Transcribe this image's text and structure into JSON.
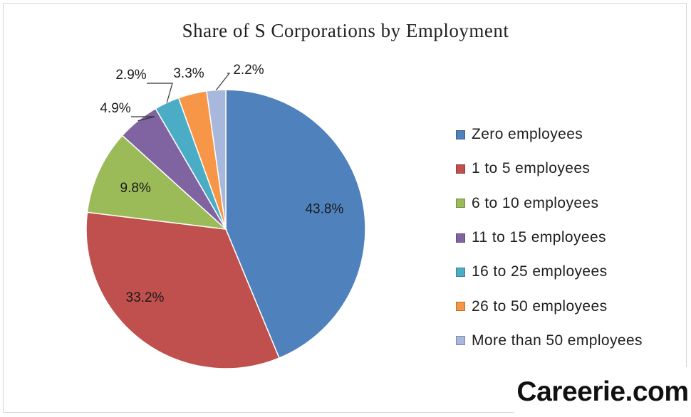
{
  "chart_data": {
    "type": "pie",
    "title": "Share of S Corporations by Employment",
    "categories": [
      "Zero employees",
      "1 to 5 employees",
      "6 to 10 employees",
      "11 to 15 employees",
      "16 to 25 employees",
      "26 to 50 employees",
      "More than 50 employees"
    ],
    "values": [
      43.8,
      33.2,
      9.8,
      4.9,
      2.9,
      3.3,
      2.2
    ],
    "labels": [
      "43.8%",
      "33.2%",
      "9.8%",
      "4.9%",
      "2.9%",
      "3.3%",
      "2.2%"
    ],
    "colors": [
      "#4f81bd",
      "#c0504d",
      "#9bbb59",
      "#8064a2",
      "#4bacc6",
      "#f79646",
      "#a8b8dc"
    ],
    "legend_position": "right"
  },
  "watermark": {
    "text": "Careerie.com"
  }
}
